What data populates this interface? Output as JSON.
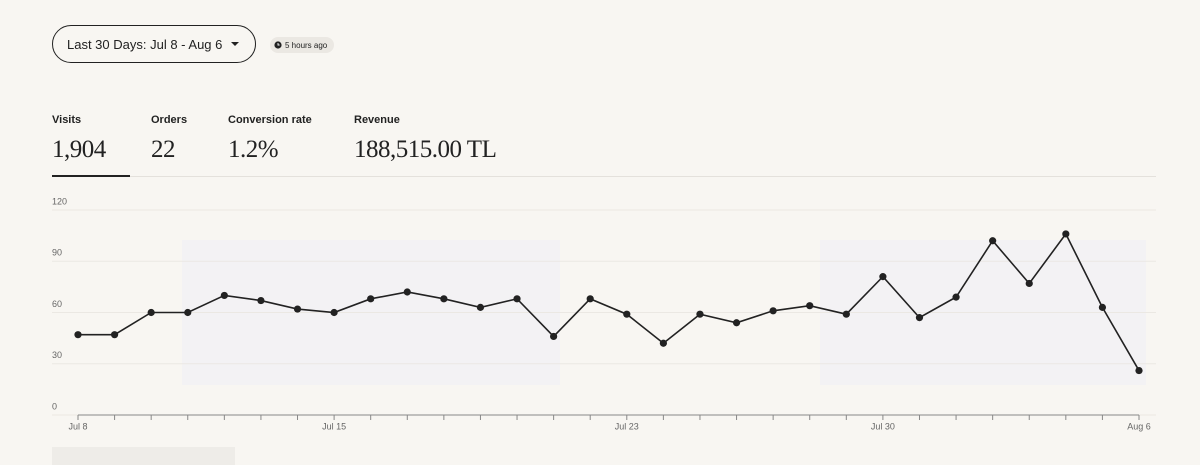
{
  "header": {
    "date_range": "Last 30 Days: Jul 8 - Aug 6",
    "updated": "5 hours ago"
  },
  "stats": [
    {
      "label": "Visits",
      "value": "1,904"
    },
    {
      "label": "Orders",
      "value": "22"
    },
    {
      "label": "Conversion rate",
      "value": "1.2%"
    },
    {
      "label": "Revenue",
      "value": "188,515.00 TL"
    }
  ],
  "chart_data": {
    "type": "line",
    "color": "#222222",
    "categories": [
      "Jul 8",
      null,
      null,
      null,
      null,
      null,
      null,
      "Jul 15",
      null,
      null,
      null,
      null,
      null,
      null,
      null,
      "Jul 23",
      null,
      null,
      null,
      null,
      null,
      null,
      "Jul 30",
      null,
      null,
      null,
      null,
      null,
      null,
      "Aug 6"
    ],
    "values": [
      47,
      47,
      60,
      60,
      70,
      67,
      62,
      60,
      68,
      72,
      68,
      63,
      68,
      46,
      68,
      59,
      42,
      59,
      54,
      61,
      64,
      59,
      81,
      57,
      69,
      102,
      77,
      106,
      63,
      26
    ],
    "ylim": [
      0,
      120
    ],
    "yticks": [
      0,
      30,
      60,
      90,
      120
    ],
    "grid": true
  }
}
